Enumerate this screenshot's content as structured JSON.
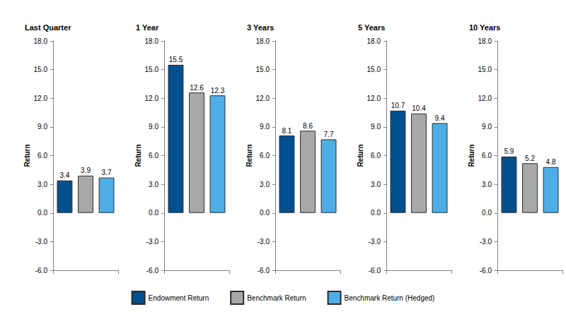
{
  "chart_data": [
    {
      "type": "bar",
      "title": "Last Quarter",
      "y_label": "Return",
      "categories": [
        null
      ],
      "series": [
        {
          "name": "Endowment Return",
          "color": "#00508f",
          "values": [
            3.4
          ]
        },
        {
          "name": "Benchmark Return",
          "color": "#a8a8a8",
          "values": [
            3.9
          ]
        },
        {
          "name": "Benchmark Return (Hedged)",
          "color": "#4eaee6",
          "values": [
            3.7
          ]
        }
      ],
      "ylim": [
        -6,
        18
      ],
      "yticks": [
        {
          "value": -6,
          "label": "-6.0"
        },
        {
          "value": -3,
          "label": "-3.0"
        },
        {
          "value": 0,
          "label": "0.0"
        },
        {
          "value": 3,
          "label": "3.0"
        },
        {
          "value": 6,
          "label": "6.0"
        },
        {
          "value": 9,
          "label": "9.0"
        },
        {
          "value": 12,
          "label": "12.0"
        },
        {
          "value": 15,
          "label": "15.0"
        },
        {
          "value": 18,
          "label": "18.0"
        }
      ],
      "grid": false,
      "data_labels": true,
      "tick_labels": "y",
      "legend": "bottom"
    },
    {
      "type": "bar",
      "title": "1 Year",
      "y_label": "Return",
      "categories": [
        null
      ],
      "series": [
        {
          "name": "Endowment Return",
          "color": "#00508f",
          "values": [
            15.5
          ]
        },
        {
          "name": "Benchmark Return",
          "color": "#a8a8a8",
          "values": [
            12.6
          ]
        },
        {
          "name": "Benchmark Return (Hedged)",
          "color": "#4eaee6",
          "values": [
            12.3
          ]
        }
      ],
      "ylim": [
        -6,
        18
      ],
      "yticks": [
        {
          "value": -6,
          "label": "-6.0"
        },
        {
          "value": -3,
          "label": "-3.0"
        },
        {
          "value": 0,
          "label": "0.0"
        },
        {
          "value": 3,
          "label": "3.0"
        },
        {
          "value": 6,
          "label": "6.0"
        },
        {
          "value": 9,
          "label": "9.0"
        },
        {
          "value": 12,
          "label": "12.0"
        },
        {
          "value": 15,
          "label": "15.0"
        },
        {
          "value": 18,
          "label": "18.0"
        }
      ],
      "grid": false,
      "data_labels": true,
      "tick_labels": "y",
      "legend": "bottom"
    },
    {
      "type": "bar",
      "title": "3 Years",
      "y_label": "Return",
      "categories": [
        null
      ],
      "series": [
        {
          "name": "Endowment Return",
          "color": "#00508f",
          "values": [
            8.1
          ]
        },
        {
          "name": "Benchmark Return",
          "color": "#a8a8a8",
          "values": [
            8.6
          ]
        },
        {
          "name": "Benchmark Return (Hedged)",
          "color": "#4eaee6",
          "values": [
            7.7
          ]
        }
      ],
      "ylim": [
        -6,
        18
      ],
      "yticks": [
        {
          "value": -6,
          "label": "-6.0"
        },
        {
          "value": -3,
          "label": "-3.0"
        },
        {
          "value": 0,
          "label": "0.0"
        },
        {
          "value": 3,
          "label": "3.0"
        },
        {
          "value": 6,
          "label": "6.0"
        },
        {
          "value": 9,
          "label": "9.0"
        },
        {
          "value": 12,
          "label": "12.0"
        },
        {
          "value": 15,
          "label": "15.0"
        },
        {
          "value": 18,
          "label": "18.0"
        }
      ],
      "grid": false,
      "data_labels": true,
      "tick_labels": "y",
      "legend": "bottom"
    },
    {
      "type": "bar",
      "title": "5 Years",
      "y_label": "Return",
      "categories": [
        null
      ],
      "series": [
        {
          "name": "Endowment Return",
          "color": "#00508f",
          "values": [
            10.7
          ]
        },
        {
          "name": "Benchmark Return",
          "color": "#a8a8a8",
          "values": [
            10.4
          ]
        },
        {
          "name": "Benchmark Return (Hedged)",
          "color": "#4eaee6",
          "values": [
            9.4
          ]
        }
      ],
      "ylim": [
        -6,
        18
      ],
      "yticks": [
        {
          "value": -6,
          "label": "-6.0"
        },
        {
          "value": -3,
          "label": "-3.0"
        },
        {
          "value": 0,
          "label": "0.0"
        },
        {
          "value": 3,
          "label": "3.0"
        },
        {
          "value": 6,
          "label": "6.0"
        },
        {
          "value": 9,
          "label": "9.0"
        },
        {
          "value": 12,
          "label": "12.0"
        },
        {
          "value": 15,
          "label": "15.0"
        },
        {
          "value": 18,
          "label": "18.0"
        }
      ],
      "grid": false,
      "data_labels": true,
      "tick_labels": "y",
      "legend": "bottom"
    },
    {
      "type": "bar",
      "title": "10 Years",
      "y_label": "Return",
      "categories": [
        null
      ],
      "series": [
        {
          "name": "Endowment Return",
          "color": "#00508f",
          "values": [
            5.9
          ]
        },
        {
          "name": "Benchmark Return",
          "color": "#a8a8a8",
          "values": [
            5.2
          ]
        },
        {
          "name": "Benchmark Return (Hedged)",
          "color": "#4eaee6",
          "values": [
            4.8
          ]
        }
      ],
      "ylim": [
        -6,
        18
      ],
      "yticks": [
        {
          "value": -6,
          "label": "-6.0"
        },
        {
          "value": -3,
          "label": "-3.0"
        },
        {
          "value": 0,
          "label": "0.0"
        },
        {
          "value": 3,
          "label": "3.0"
        },
        {
          "value": 6,
          "label": "6.0"
        },
        {
          "value": 9,
          "label": "9.0"
        },
        {
          "value": 12,
          "label": "12.0"
        },
        {
          "value": 15,
          "label": "15.0"
        },
        {
          "value": 18,
          "label": "18.0"
        }
      ],
      "grid": false,
      "data_labels": true,
      "tick_labels": "y",
      "legend": "bottom"
    }
  ]
}
